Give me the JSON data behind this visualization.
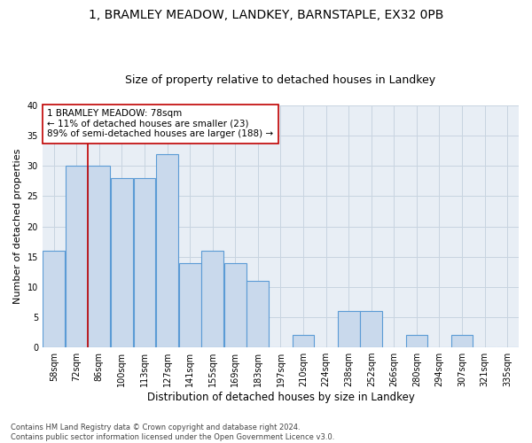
{
  "title1": "1, BRAMLEY MEADOW, LANDKEY, BARNSTAPLE, EX32 0PB",
  "title2": "Size of property relative to detached houses in Landkey",
  "xlabel": "Distribution of detached houses by size in Landkey",
  "ylabel": "Number of detached properties",
  "categories": [
    "58sqm",
    "72sqm",
    "86sqm",
    "100sqm",
    "113sqm",
    "127sqm",
    "141sqm",
    "155sqm",
    "169sqm",
    "183sqm",
    "197sqm",
    "210sqm",
    "224sqm",
    "238sqm",
    "252sqm",
    "266sqm",
    "280sqm",
    "294sqm",
    "307sqm",
    "321sqm",
    "335sqm"
  ],
  "values": [
    16,
    30,
    30,
    28,
    28,
    32,
    14,
    16,
    14,
    11,
    0,
    2,
    0,
    6,
    6,
    0,
    2,
    0,
    2,
    0,
    0
  ],
  "bar_color": "#c9d9ec",
  "bar_edge_color": "#5b9bd5",
  "bar_linewidth": 0.8,
  "vline_x": 1.5,
  "vline_color": "#c00000",
  "annotation_text": "1 BRAMLEY MEADOW: 78sqm\n← 11% of detached houses are smaller (23)\n89% of semi-detached houses are larger (188) →",
  "annotation_box_color": "white",
  "annotation_box_edge": "#c00000",
  "ylim": [
    0,
    40
  ],
  "yticks": [
    0,
    5,
    10,
    15,
    20,
    25,
    30,
    35,
    40
  ],
  "grid_color": "#c8d4e0",
  "bg_color": "#e8eef5",
  "footnote": "Contains HM Land Registry data © Crown copyright and database right 2024.\nContains public sector information licensed under the Open Government Licence v3.0.",
  "title1_fontsize": 10,
  "title2_fontsize": 9,
  "xlabel_fontsize": 8.5,
  "ylabel_fontsize": 8,
  "tick_fontsize": 7,
  "annot_fontsize": 7.5,
  "footnote_fontsize": 6
}
